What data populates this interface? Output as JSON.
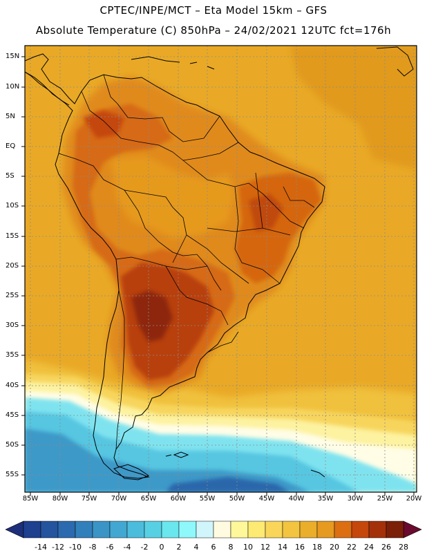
{
  "title_line1": "CPTEC/INPE/MCT –  Eta Model 15km – GFS",
  "title_line2": "Absolute Temperature (C) 850hPa – 24/02/2021 12UTC fct=176h",
  "lat_labels": [
    "15N",
    "10N",
    "5N",
    "EQ",
    "5S",
    "10S",
    "15S",
    "20S",
    "25S",
    "30S",
    "35S",
    "40S",
    "45S",
    "50S",
    "55S"
  ],
  "lon_labels": [
    "85W",
    "80W",
    "75W",
    "70W",
    "65W",
    "60W",
    "55W",
    "50W",
    "45W",
    "40W",
    "35W",
    "30W",
    "25W",
    "20W"
  ],
  "colorbar": {
    "labels": [
      "-14",
      "-12",
      "-10",
      "-8",
      "-6",
      "-4",
      "-2",
      "0",
      "2",
      "4",
      "6",
      "8",
      "10",
      "12",
      "14",
      "16",
      "18",
      "20",
      "22",
      "24",
      "26",
      "28"
    ],
    "colors": [
      "#1f3f8f",
      "#24549e",
      "#2b6aae",
      "#3280bb",
      "#3a95c6",
      "#42a8d2",
      "#4cbcdc",
      "#58d0e4",
      "#6ae6ee",
      "#8ff8fb",
      "#d0f6fb",
      "#fffbe0",
      "#fff89a",
      "#fdea73",
      "#f9d65a",
      "#f3c440",
      "#ebae2a",
      "#e69a1f",
      "#dc6f12",
      "#c5470c",
      "#a4300a",
      "#7c1f08"
    ]
  }
}
